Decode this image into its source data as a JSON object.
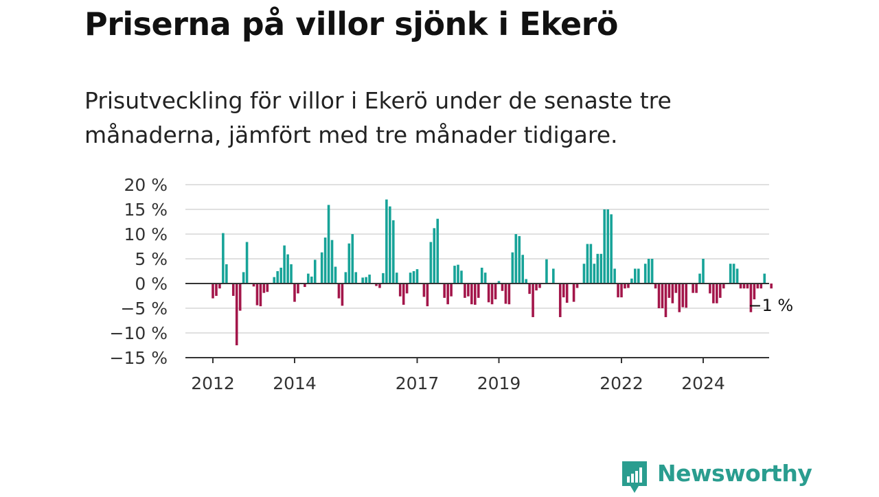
{
  "title": "Priserna på villor sjönk i Ekerö",
  "subtitle": "Prisutveckling för villor i Ekerö under de senaste tre månaderna, jämfört med tre månader tidigare.",
  "brand": {
    "name": "Newsworthy",
    "color": "#2a9d8f"
  },
  "colors": {
    "positive": "#17a398",
    "negative": "#a3164a",
    "grid": "#d6d6d6",
    "baseline": "#333333"
  },
  "chart_data": {
    "type": "bar",
    "title": "",
    "xlabel": "",
    "ylabel": "",
    "ylim": [
      -15,
      20
    ],
    "yticks": [
      20,
      15,
      10,
      5,
      0,
      -5,
      -10,
      -15
    ],
    "ytick_labels": [
      "20 %",
      "15 %",
      "10 %",
      "5 %",
      "0 %",
      "−5 %",
      "−10 %",
      "−15 %"
    ],
    "xtick_labels": [
      "2012",
      "2014",
      "2017",
      "2019",
      "2022",
      "2024"
    ],
    "xtick_years": [
      2012,
      2014,
      2017,
      2019,
      2022,
      2024
    ],
    "start_year": 2012,
    "start_month": 1,
    "x_axis_end_month": "2025-06",
    "series_name": "",
    "values": [
      -3,
      -2.5,
      -1,
      10.2,
      3.9,
      0,
      -2.5,
      -12.5,
      -5.5,
      2.3,
      8.4,
      0,
      -0.6,
      -4.4,
      -4.6,
      -1.9,
      -1.7,
      0,
      1.3,
      2.5,
      3.2,
      7.7,
      5.9,
      3.9,
      -3.7,
      -2,
      0,
      -0.7,
      2,
      1.4,
      4.8,
      0,
      6.3,
      9.3,
      15.9,
      8.8,
      3.4,
      -3,
      -4.5,
      2.3,
      8.1,
      10,
      2.3,
      0,
      1.2,
      1.3,
      1.8,
      0,
      -0.5,
      -0.9,
      2.1,
      17,
      15.6,
      12.8,
      2.2,
      -2.6,
      -4.3,
      -2,
      2.2,
      2.5,
      2.9,
      0,
      -2.7,
      -4.6,
      8.4,
      11.2,
      13.1,
      0,
      -2.9,
      -4.2,
      -2.6,
      3.6,
      3.8,
      2.6,
      -2.9,
      -2.6,
      -4.2,
      -4.3,
      -2.9,
      3.2,
      2.2,
      -3.8,
      -4.2,
      -3.2,
      0.5,
      -1.5,
      -4.1,
      -4.2,
      6.3,
      10,
      9.6,
      5.8,
      0.9,
      -2.1,
      -6.8,
      -1.4,
      -0.9,
      0,
      4.9,
      0,
      3,
      0,
      -6.8,
      -2.8,
      -3.9,
      0,
      -3.7,
      -0.9,
      0,
      4,
      8,
      8,
      4,
      6,
      6,
      15,
      15,
      14,
      3,
      -2.8,
      -2.8,
      -1,
      -0.9,
      1,
      3,
      3,
      0,
      4,
      5,
      5,
      -1,
      -5,
      -5,
      -6.8,
      -2.9,
      -4,
      -1.9,
      -5.8,
      -4.8,
      -4.9,
      0,
      -1.9,
      -1.9,
      2,
      5,
      0,
      -2,
      -4,
      -4,
      -2.9,
      -1,
      0,
      4,
      4,
      3,
      -1,
      -1,
      -1,
      -5.8,
      -3.2,
      -1,
      -1,
      2,
      0,
      -1
    ],
    "last_value_label": "−1 %"
  }
}
